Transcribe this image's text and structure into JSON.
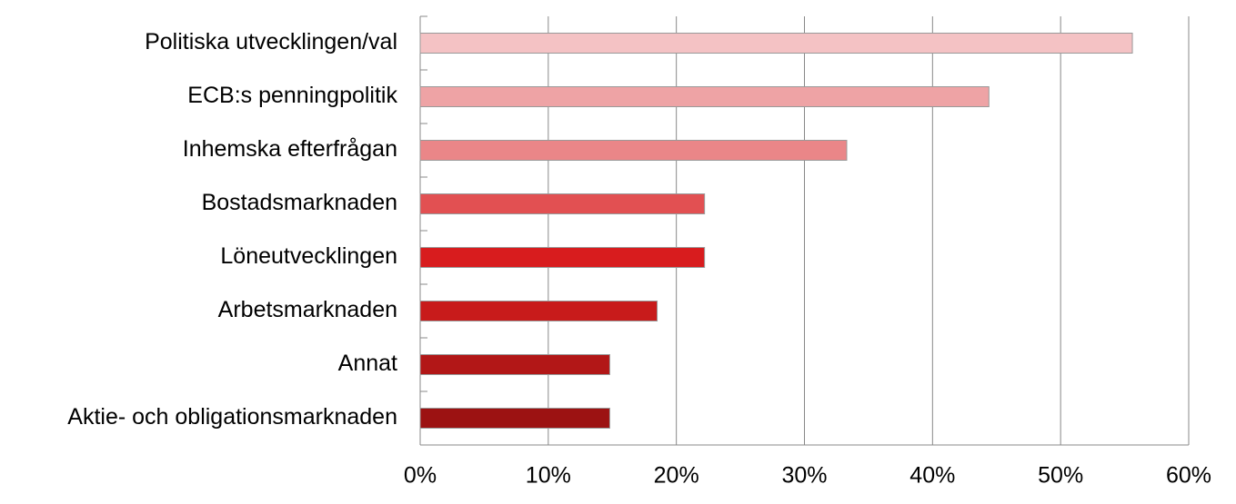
{
  "chart_data": {
    "type": "hbar",
    "categories": [
      "Politiska utvecklingen/val",
      "ECB:s penningpolitik",
      "Inhemska efterfrågan",
      "Bostadsmarknaden",
      "Löneutvecklingen",
      "Arbetsmarknaden",
      "Annat",
      "Aktie- och obligationsmarknaden"
    ],
    "values": [
      55.6,
      44.4,
      33.3,
      22.2,
      22.2,
      18.5,
      14.8,
      14.8
    ],
    "colors": [
      "#f4c2c4",
      "#eea3a5",
      "#ea8688",
      "#e25052",
      "#d81c1e",
      "#c81b1b",
      "#b21717",
      "#9c1212"
    ],
    "xlim": [
      0,
      60
    ],
    "xticks": [
      {
        "value": 0,
        "label": "0%"
      },
      {
        "value": 10,
        "label": "10%"
      },
      {
        "value": 20,
        "label": "20%"
      },
      {
        "value": 30,
        "label": "30%"
      },
      {
        "value": 40,
        "label": "40%"
      },
      {
        "value": 50,
        "label": "50%"
      },
      {
        "value": 60,
        "label": "60%"
      }
    ],
    "grid": true
  }
}
